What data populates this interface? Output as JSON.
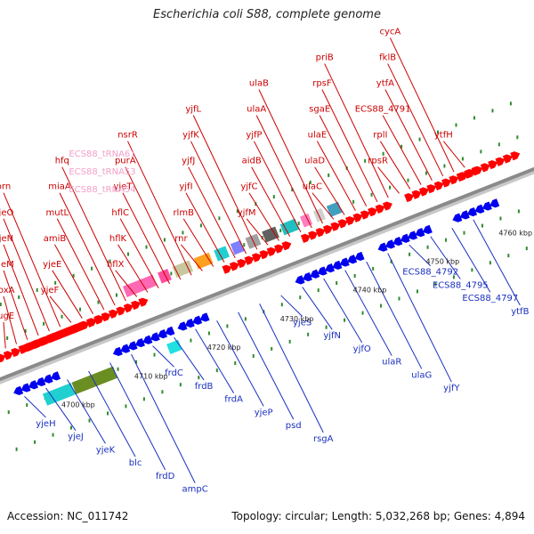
{
  "title": "Escherichia coli S88, complete genome",
  "footer": {
    "accession": "Accession: NC_011742",
    "stats": "Topology: circular; Length: 5,032,268 bp; Genes: 4,894"
  },
  "colors": {
    "forward_label": "#cc0000",
    "reverse_label": "#1a2fbf",
    "trna_label": "#f2a0c8",
    "forward_gene": "#ff0000",
    "reverse_gene": "#0000ee",
    "backbone": "#8a8a8a",
    "tick": "#2e8b2e"
  },
  "kbp_labels": [
    "4700 kbp",
    "4710 kbp",
    "4720 kbp",
    "4730 kbp",
    "4740 kbp",
    "4750 kbp",
    "4760 kbp"
  ],
  "forward_labels": [
    "sugE",
    "poxA",
    "yjeM",
    "yjeN",
    "yjeO",
    "orn",
    "ECS88_tRNA61",
    "ECS88_tRNA53",
    "ECS88_tRNA54",
    "yjeF",
    "yjeE",
    "amiB",
    "mutL",
    "miaA",
    "hfq",
    "hflX",
    "hflK",
    "hflC",
    "yjeT",
    "purA",
    "nsrR",
    "rnr",
    "rlmB",
    "yjfI",
    "yjfJ",
    "yjfK",
    "yjfL",
    "yjfM",
    "yjfC",
    "aidB",
    "yjfP",
    "ulaA",
    "ulaB",
    "ulaC",
    "ulaD",
    "ulaE",
    "sgaE",
    "rpsF",
    "priB",
    "rpsR",
    "rplI",
    "ECS88_4791",
    "ytfA",
    "fklB",
    "cycA",
    "ytfH"
  ],
  "reverse_labels": [
    "yjeH",
    "yjeJ",
    "yjeK",
    "blc",
    "frdD",
    "ampC",
    "frdC",
    "frdB",
    "frdA",
    "yjeP",
    "psd",
    "rsgA",
    "yjeS",
    "yjfN",
    "yjfO",
    "ulaR",
    "ulaG",
    "yjfY",
    "ECS88_4792",
    "ECS88_4795",
    "ECS88_4797",
    "ytfB"
  ]
}
